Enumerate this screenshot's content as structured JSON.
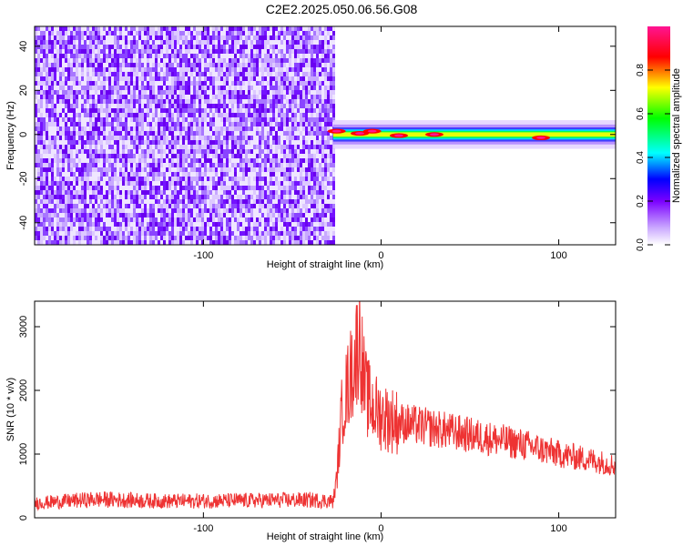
{
  "title": "C2E2.2025.050.06.56.G08",
  "chart_data": [
    {
      "type": "heatmap",
      "xlabel": "Height of straight line (km)",
      "ylabel": "Frequency (Hz)",
      "xlim": [
        -195,
        132
      ],
      "ylim": [
        -50,
        49
      ],
      "x_ticks": [
        -100,
        0,
        100
      ],
      "x_tick_labels": [
        "-100",
        "0",
        "100"
      ],
      "y_ticks": [
        -40,
        -20,
        0,
        20,
        40
      ],
      "y_tick_labels": [
        "-40",
        "-20",
        "0",
        "20",
        "40"
      ],
      "grid": false,
      "noise_region": {
        "x_from": -195,
        "x_to": -27,
        "freq_from": -50,
        "freq_to": 49
      },
      "signal_band": {
        "x_from": -27,
        "x_to": 132,
        "center_freq": 0,
        "half_width_hz": 3,
        "peaks": [
          {
            "x": -25,
            "freq": 1.5,
            "amplitude": 0.95
          },
          {
            "x": -12,
            "freq": 0.5,
            "amplitude": 0.9
          },
          {
            "x": -5,
            "freq": 1.5,
            "amplitude": 0.95
          },
          {
            "x": 10,
            "freq": -0.5,
            "amplitude": 0.85
          },
          {
            "x": 30,
            "freq": 0,
            "amplitude": 1.0
          },
          {
            "x": 90,
            "freq": -1.5,
            "amplitude": 0.95
          }
        ]
      },
      "colorbar": {
        "label": "Normalized spectral amplitude",
        "range": [
          0,
          1
        ],
        "ticks": [
          0.0,
          0.2,
          0.4,
          0.6,
          0.8
        ],
        "tick_labels": [
          "0.0",
          "0.2",
          "0.4",
          "0.6",
          "0.8"
        ],
        "colors": [
          "#ffffff",
          "#7b00ff",
          "#0000ff",
          "#00ffff",
          "#00ff00",
          "#ffff00",
          "#ff0000",
          "#ff1493"
        ]
      }
    },
    {
      "type": "line",
      "xlabel": "Height of straight line (km)",
      "ylabel": "SNR (10 * v/v)",
      "xlim": [
        -195,
        132
      ],
      "ylim": [
        0,
        3400
      ],
      "x_ticks": [
        -100,
        0,
        100
      ],
      "x_tick_labels": [
        "-100",
        "0",
        "100"
      ],
      "y_ticks": [
        0,
        1000,
        2000,
        3000
      ],
      "y_tick_labels": [
        "0",
        "1000",
        "2000",
        "3000"
      ],
      "grid": false,
      "color": "#ee3333",
      "series": [
        {
          "x": [
            -195,
            -160,
            -120,
            -80,
            -40,
            -27,
            -25,
            -22,
            -18,
            -15,
            -12,
            -10,
            -8,
            -5,
            0,
            10,
            20,
            40,
            60,
            80,
            100,
            120,
            132
          ],
          "values": [
            230,
            290,
            260,
            270,
            280,
            260,
            600,
            1700,
            2150,
            2450,
            2900,
            2200,
            1900,
            1750,
            1600,
            1500,
            1450,
            1350,
            1250,
            1150,
            1000,
            900,
            820
          ]
        }
      ]
    }
  ]
}
